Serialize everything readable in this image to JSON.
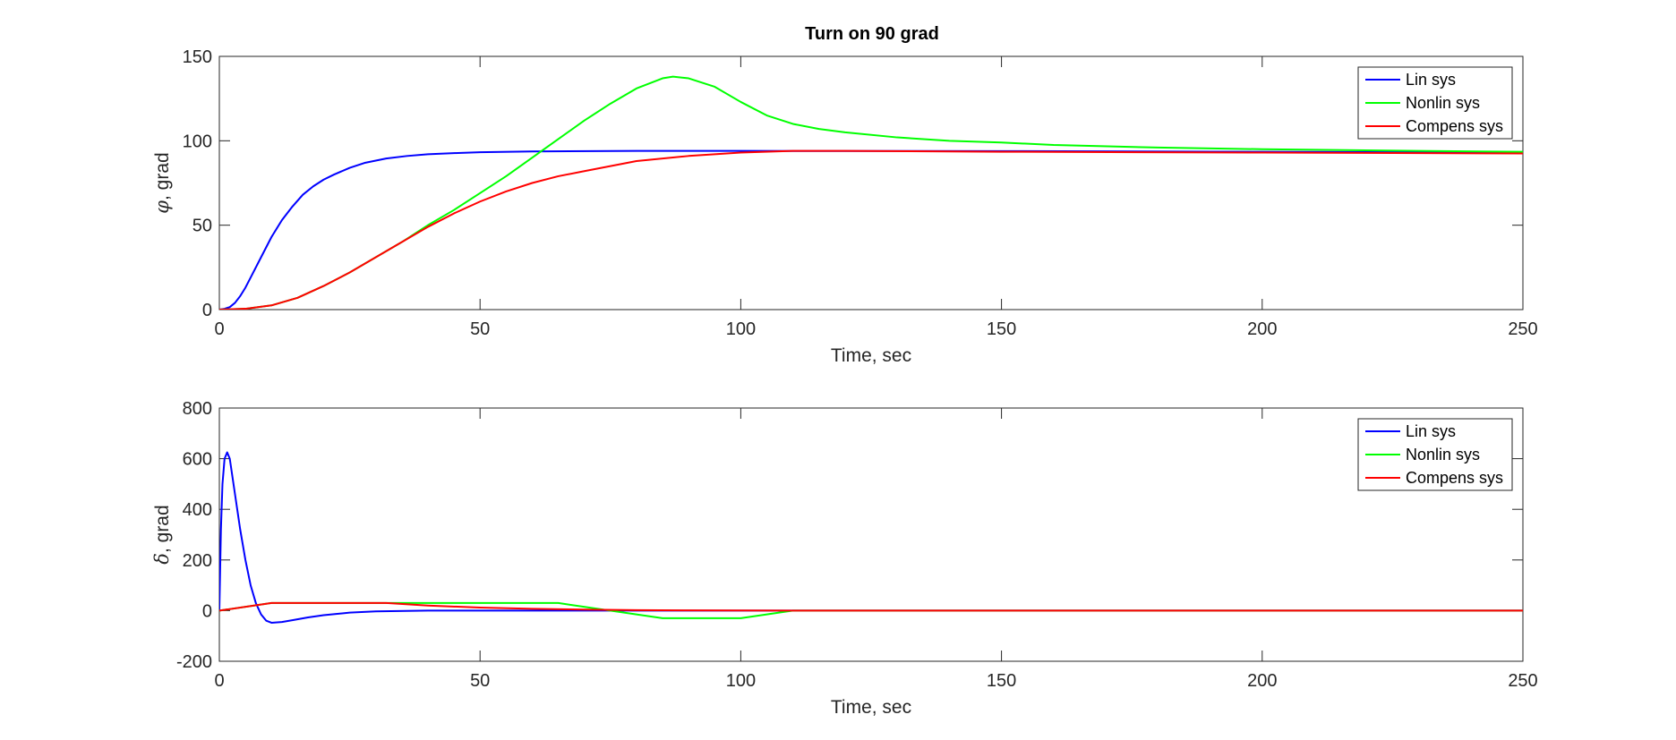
{
  "figure": {
    "title": "Turn on 90 grad"
  },
  "colors": {
    "lin": "#0000ff",
    "nonlin": "#00ff00",
    "compens": "#ff0000",
    "axes": "#262626",
    "background": "#ffffff"
  },
  "chart_data": [
    {
      "type": "line",
      "title": "Turn on 90 grad",
      "xlabel": "Time, sec",
      "ylabel": "φ, grad",
      "ylabel_symbol": "φ",
      "ylabel_rest": ", grad",
      "xlim": [
        0,
        250
      ],
      "ylim": [
        0,
        150
      ],
      "xticks": [
        0,
        50,
        100,
        150,
        200,
        250
      ],
      "yticks": [
        0,
        50,
        100,
        150
      ],
      "grid": false,
      "legend_position": "top-right",
      "series": [
        {
          "name": "Lin sys",
          "color": "#0000ff",
          "x": [
            0,
            1,
            2,
            3,
            4,
            5,
            6,
            8,
            10,
            12,
            14,
            16,
            18,
            20,
            22,
            25,
            28,
            32,
            36,
            40,
            45,
            50,
            60,
            80,
            100,
            150,
            200,
            250
          ],
          "y": [
            0,
            0.5,
            1.5,
            4,
            8,
            13,
            19,
            31,
            43,
            53,
            61,
            68,
            73,
            77,
            80,
            84,
            87,
            89.5,
            91,
            92,
            92.7,
            93.2,
            93.7,
            94,
            94,
            93.9,
            93.5,
            93
          ]
        },
        {
          "name": "Nonlin sys",
          "color": "#00ff00",
          "x": [
            0,
            5,
            10,
            15,
            20,
            25,
            30,
            35,
            40,
            45,
            50,
            55,
            60,
            65,
            70,
            75,
            80,
            85,
            87,
            90,
            95,
            100,
            105,
            110,
            115,
            120,
            130,
            140,
            150,
            160,
            180,
            200,
            230,
            250
          ],
          "y": [
            0,
            0.5,
            2.5,
            7,
            14,
            22,
            31,
            40,
            50,
            59,
            69,
            79,
            90,
            101,
            112,
            122,
            131,
            137,
            138,
            137,
            132,
            123,
            115,
            110,
            107,
            105,
            102,
            100,
            99,
            97.5,
            96,
            95,
            94,
            93.5
          ]
        },
        {
          "name": "Compens sys",
          "color": "#ff0000",
          "x": [
            0,
            5,
            10,
            15,
            20,
            25,
            30,
            35,
            40,
            45,
            50,
            55,
            60,
            65,
            70,
            75,
            80,
            90,
            100,
            110,
            120,
            150,
            200,
            250
          ],
          "y": [
            0,
            0.5,
            2.5,
            7,
            14,
            22,
            31,
            40,
            49,
            57,
            64,
            70,
            75,
            79,
            82,
            85,
            88,
            91,
            93,
            94,
            94,
            93.5,
            93,
            92.5
          ]
        }
      ]
    },
    {
      "type": "line",
      "title": "",
      "xlabel": "Time, sec",
      "ylabel": "δ, grad",
      "ylabel_symbol": "δ",
      "ylabel_rest": ", grad",
      "xlim": [
        0,
        250
      ],
      "ylim": [
        -200,
        800
      ],
      "xticks": [
        0,
        50,
        100,
        150,
        200,
        250
      ],
      "yticks": [
        -200,
        0,
        200,
        400,
        600,
        800
      ],
      "grid": false,
      "legend_position": "top-right",
      "series": [
        {
          "name": "Lin sys",
          "color": "#0000ff",
          "x": [
            0,
            0.3,
            0.6,
            1,
            1.5,
            2,
            3,
            4,
            5,
            6,
            7,
            8,
            9,
            10,
            12,
            14,
            17,
            20,
            25,
            30,
            40,
            60,
            250
          ],
          "y": [
            0,
            320,
            500,
            600,
            625,
            600,
            460,
            320,
            200,
            100,
            30,
            -15,
            -40,
            -48,
            -45,
            -38,
            -27,
            -18,
            -8,
            -3,
            0,
            0,
            0
          ]
        },
        {
          "name": "Nonlin sys",
          "color": "#00ff00",
          "x": [
            0,
            10,
            32,
            65,
            85,
            100,
            110,
            120,
            250
          ],
          "y": [
            0,
            30,
            30,
            30,
            -30,
            -30,
            0,
            0,
            0
          ]
        },
        {
          "name": "Compens sys",
          "color": "#ff0000",
          "x": [
            0,
            10,
            32,
            40,
            50,
            60,
            70,
            80,
            90,
            110,
            120,
            250
          ],
          "y": [
            0,
            30,
            30,
            20,
            12,
            7,
            4,
            2,
            1,
            0,
            0,
            0
          ]
        }
      ]
    }
  ]
}
